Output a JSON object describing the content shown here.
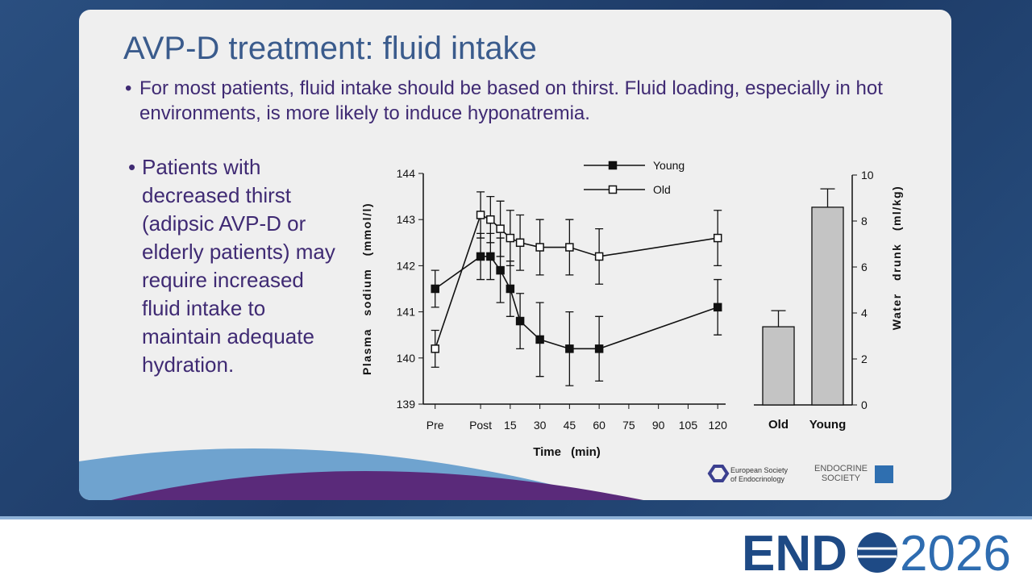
{
  "slide": {
    "title": "AVP-D treatment: fluid intake",
    "bullets": [
      "For most patients, fluid intake should be based on thirst. Fluid loading, especially in hot environments, is more likely to induce hyponatremia.",
      "Patients with decreased thirst (adipsic AVP-D or elderly patients) may require increased fluid intake to maintain adequate hydration."
    ]
  },
  "chart_data": [
    {
      "type": "line",
      "x_label": "Time (min)",
      "y_label": "Plasma sodium (mmol/l)",
      "x": [
        -23,
        0,
        5,
        10,
        15,
        20,
        30,
        45,
        60,
        120
      ],
      "xlim": [
        -29,
        124
      ],
      "xticks": [
        {
          "value": -23,
          "label": "Pre"
        },
        {
          "value": 0,
          "label": "Post"
        },
        15,
        30,
        45,
        60,
        75,
        90,
        105,
        120
      ],
      "ylim": [
        139,
        144
      ],
      "yticks": [
        139,
        140,
        141,
        142,
        143,
        144
      ],
      "series": [
        {
          "name": "Young",
          "color": "#111111",
          "fill": "#111111",
          "values": [
            141.5,
            142.2,
            142.2,
            141.9,
            141.5,
            140.8,
            140.4,
            140.2,
            140.2,
            141.1
          ],
          "errors": [
            0.4,
            0.5,
            0.5,
            0.7,
            0.6,
            0.6,
            0.8,
            0.8,
            0.7,
            0.6
          ]
        },
        {
          "name": "Old",
          "color": "#111111",
          "fill": "#ffffff",
          "values": [
            140.2,
            143.1,
            143.0,
            142.8,
            142.6,
            142.5,
            142.4,
            142.4,
            142.2,
            142.6
          ],
          "errors": [
            0.4,
            0.5,
            0.5,
            0.6,
            0.6,
            0.6,
            0.6,
            0.6,
            0.6,
            0.6
          ]
        }
      ]
    },
    {
      "type": "bar",
      "y_label": "Water drunk (ml/kg)",
      "categories": [
        "Old",
        "Young"
      ],
      "values": [
        3.4,
        8.6
      ],
      "errors": [
        0.7,
        0.8
      ],
      "color": "#c4c4c4",
      "ylim": [
        0,
        10
      ],
      "yticks": [
        0,
        2,
        4,
        6,
        8,
        10
      ]
    }
  ],
  "logos": {
    "ese": [
      "European Society",
      "of Endocrinology"
    ],
    "endocrine_society": [
      "ENDOCRINE",
      "SOCIETY"
    ],
    "event": [
      "END",
      "2026"
    ]
  }
}
